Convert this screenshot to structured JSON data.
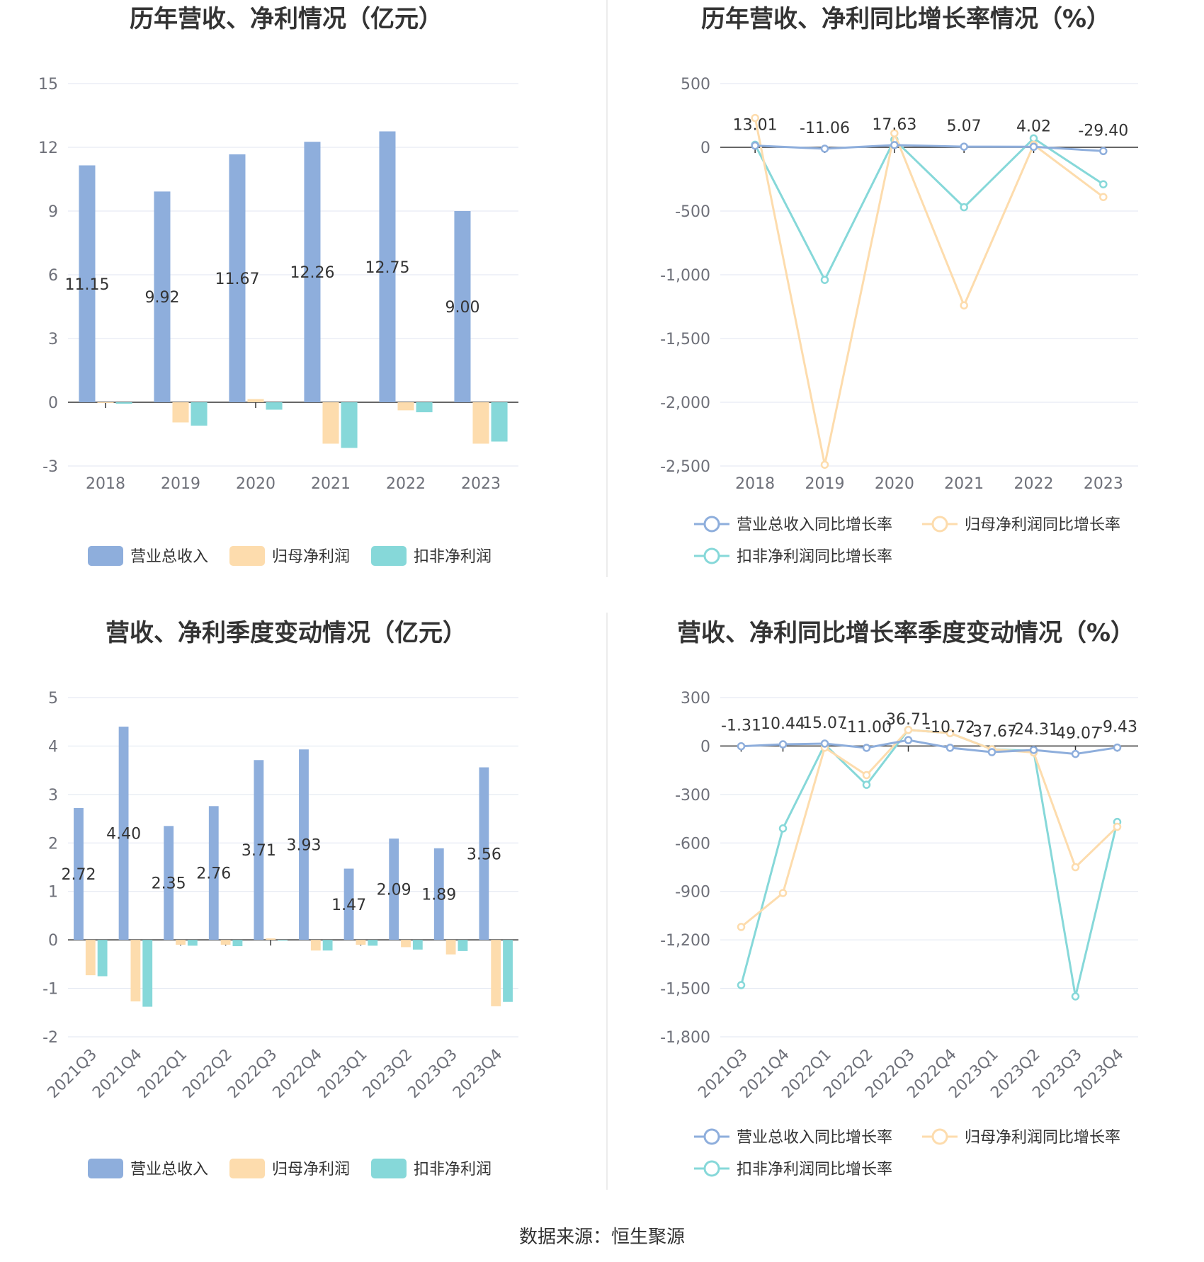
{
  "source_text": "数据来源：恒生聚源",
  "chart_data": [
    {
      "type": "bar",
      "title": "历年营收、净利情况（亿元）",
      "categories": [
        "2018",
        "2019",
        "2020",
        "2021",
        "2022",
        "2023"
      ],
      "ylim": [
        -3,
        15
      ],
      "yticks": [
        -3,
        0,
        3,
        6,
        9,
        12,
        15
      ],
      "grid": true,
      "legend_position": "bottom",
      "labeled_series": 0,
      "series": [
        {
          "name": "营业总收入",
          "color": "#8eaedc",
          "values": [
            11.15,
            9.92,
            11.67,
            12.26,
            12.75,
            9.0
          ],
          "labels": [
            "11.15",
            "9.92",
            "11.67",
            "12.26",
            "12.75",
            "9.00"
          ]
        },
        {
          "name": "归母净利润",
          "color": "#fddcad",
          "values": [
            -0.02,
            -0.95,
            0.15,
            -1.95,
            -0.38,
            -1.95
          ]
        },
        {
          "name": "扣非净利润",
          "color": "#86d8d9",
          "values": [
            -0.07,
            -1.1,
            -0.35,
            -2.15,
            -0.47,
            -1.85
          ]
        }
      ]
    },
    {
      "type": "line",
      "title": "历年营收、净利同比增长率情况（%）",
      "categories": [
        "2018",
        "2019",
        "2020",
        "2021",
        "2022",
        "2023"
      ],
      "ylim": [
        -2500,
        500
      ],
      "yticks": [
        -2500,
        -2000,
        -1500,
        -1000,
        -500,
        0,
        500
      ],
      "ytick_labels": [
        "-2,500",
        "-2,000",
        "-1,500",
        "-1,000",
        "-500",
        "0",
        "500"
      ],
      "grid": true,
      "legend_position": "bottom",
      "labeled_series": 0,
      "series": [
        {
          "name": "营业总收入同比增长率",
          "color": "#8eaedc",
          "values": [
            13.01,
            -11.06,
            17.63,
            5.07,
            4.02,
            -29.4
          ],
          "labels": [
            "13.01",
            "-11.06",
            "17.63",
            "5.07",
            "4.02",
            "-29.40"
          ]
        },
        {
          "name": "归母净利润同比增长率",
          "color": "#fddcad",
          "values": [
            230,
            -2490,
            110,
            -1240,
            20,
            -390
          ]
        },
        {
          "name": "扣非净利润同比增长率",
          "color": "#86d8d9",
          "values": [
            20,
            -1040,
            60,
            -470,
            70,
            -290
          ]
        }
      ]
    },
    {
      "type": "bar",
      "title": "营收、净利季度变动情况（亿元）",
      "categories": [
        "2021Q3",
        "2021Q4",
        "2022Q1",
        "2022Q2",
        "2022Q3",
        "2022Q4",
        "2023Q1",
        "2023Q2",
        "2023Q3",
        "2023Q4"
      ],
      "ylim": [
        -2,
        5
      ],
      "yticks": [
        -2,
        -1,
        0,
        1,
        2,
        3,
        4,
        5
      ],
      "grid": true,
      "legend_position": "bottom",
      "rotate_xticks": true,
      "labeled_series": 0,
      "series": [
        {
          "name": "营业总收入",
          "color": "#8eaedc",
          "values": [
            2.72,
            4.4,
            2.35,
            2.76,
            3.71,
            3.93,
            1.47,
            2.09,
            1.89,
            3.56
          ],
          "labels": [
            "2.72",
            "4.40",
            "2.35",
            "2.76",
            "3.71",
            "3.93",
            "1.47",
            "2.09",
            "1.89",
            "3.56"
          ]
        },
        {
          "name": "归母净利润",
          "color": "#fddcad",
          "values": [
            -0.73,
            -1.27,
            -0.1,
            -0.1,
            0.03,
            -0.22,
            -0.1,
            -0.15,
            -0.3,
            -1.37
          ]
        },
        {
          "name": "扣非净利润",
          "color": "#86d8d9",
          "values": [
            -0.75,
            -1.38,
            -0.12,
            -0.13,
            0.0,
            -0.22,
            -0.12,
            -0.2,
            -0.23,
            -1.28
          ]
        }
      ]
    },
    {
      "type": "line",
      "title": "营收、净利同比增长率季度变动情况（%）",
      "categories": [
        "2021Q3",
        "2021Q4",
        "2022Q1",
        "2022Q2",
        "2022Q3",
        "2022Q4",
        "2023Q1",
        "2023Q2",
        "2023Q3",
        "2023Q4"
      ],
      "ylim": [
        -1800,
        300
      ],
      "yticks": [
        -1800,
        -1500,
        -1200,
        -900,
        -600,
        -300,
        0,
        300
      ],
      "ytick_labels": [
        "-1,800",
        "-1,500",
        "-1,200",
        "-900",
        "-600",
        "-300",
        "0",
        "300"
      ],
      "grid": true,
      "legend_position": "bottom",
      "rotate_xticks": true,
      "labeled_series": 0,
      "series": [
        {
          "name": "营业总收入同比增长率",
          "color": "#8eaedc",
          "values": [
            -1.31,
            10.44,
            15.07,
            -11.0,
            36.71,
            -10.72,
            -37.67,
            -24.31,
            -49.07,
            -9.43
          ],
          "labels": [
            "-1.31",
            "10.44",
            "15.07",
            "-11.00",
            "36.71",
            "-10.72",
            "-37.67",
            "-24.31",
            "-49.07",
            "-9.43"
          ]
        },
        {
          "name": "归母净利润同比增长率",
          "color": "#fddcad",
          "values": [
            -1120,
            -910,
            -10,
            -180,
            100,
            80,
            -20,
            -40,
            -750,
            -500
          ]
        },
        {
          "name": "扣非净利润同比增长率",
          "color": "#86d8d9",
          "values": [
            -1480,
            -510,
            10,
            -240,
            100,
            80,
            -20,
            -30,
            -1550,
            -470
          ]
        }
      ]
    }
  ]
}
